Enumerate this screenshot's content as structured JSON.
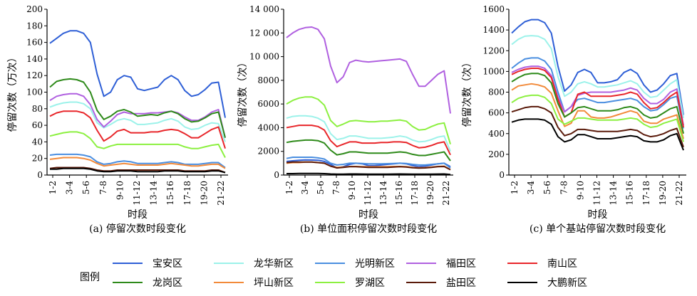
{
  "legend": {
    "title": "图例",
    "items": [
      {
        "name": "宝安区",
        "color": "#2e5fd6"
      },
      {
        "name": "龙华新区",
        "color": "#9cf2ea"
      },
      {
        "name": "光明新区",
        "color": "#4a8ee0"
      },
      {
        "name": "福田区",
        "color": "#b060e0"
      },
      {
        "name": "南山区",
        "color": "#e8262a"
      },
      {
        "name": "龙岗区",
        "color": "#2e8a1a"
      },
      {
        "name": "坪山新区",
        "color": "#f28a3a"
      },
      {
        "name": "罗湖区",
        "color": "#8cf040"
      },
      {
        "name": "盐田区",
        "color": "#5a1a0a"
      },
      {
        "name": "大鹏新区",
        "color": "#000000"
      }
    ]
  },
  "chart_data": [
    {
      "type": "line",
      "caption": "(a) 停留次数时段变化",
      "ylabel": "停留次数（万次）",
      "xlabel": "时段",
      "ylim": [
        0,
        200
      ],
      "yticks": [
        "0",
        "20",
        "40",
        "60",
        "80",
        "100",
        "120",
        "140",
        "160",
        "180",
        "200"
      ],
      "xticks": [
        "1-2",
        "3-4",
        "5-6",
        "7-8",
        "9-10",
        "11-12",
        "13-14",
        "15-16",
        "17-18",
        "19-20",
        "21-22"
      ],
      "series": [
        {
          "name": "宝安区",
          "values": [
            159,
            165,
            171,
            174,
            174,
            171,
            160,
            122,
            95,
            100,
            115,
            120,
            118,
            104,
            102,
            104,
            106,
            115,
            120,
            115,
            102,
            95,
            97,
            103,
            111,
            112,
            69
          ]
        },
        {
          "name": "龙华新区",
          "values": [
            82,
            85,
            87,
            88,
            88,
            86,
            80,
            63,
            57,
            61,
            66,
            68,
            66,
            61,
            61,
            62,
            63,
            66,
            68,
            65,
            58,
            55,
            56,
            60,
            63,
            62,
            40
          ]
        },
        {
          "name": "光明新区",
          "values": [
            24,
            25,
            25,
            25,
            25,
            24,
            22,
            16,
            13,
            14,
            16,
            17,
            16,
            14,
            14,
            14,
            14,
            15,
            16,
            15,
            13,
            13,
            13,
            14,
            15,
            15,
            9
          ]
        },
        {
          "name": "福田区",
          "values": [
            90,
            95,
            97,
            98,
            98,
            95,
            85,
            67,
            58,
            65,
            73,
            76,
            74,
            74,
            74,
            75,
            75,
            76,
            77,
            75,
            70,
            66,
            66,
            70,
            76,
            79,
            45
          ]
        },
        {
          "name": "南山区",
          "values": [
            71,
            75,
            77,
            77,
            77,
            75,
            69,
            54,
            41,
            46,
            53,
            55,
            51,
            51,
            51,
            52,
            52,
            54,
            55,
            54,
            50,
            45,
            45,
            50,
            55,
            58,
            32
          ]
        },
        {
          "name": "龙岗区",
          "values": [
            106,
            113,
            115,
            116,
            115,
            112,
            100,
            78,
            67,
            71,
            77,
            79,
            76,
            71,
            72,
            73,
            72,
            75,
            77,
            74,
            68,
            64,
            65,
            69,
            74,
            76,
            45
          ]
        },
        {
          "name": "坪山新区",
          "values": [
            19,
            20,
            21,
            21,
            21,
            20,
            18,
            14,
            11,
            12,
            13,
            14,
            13,
            12,
            12,
            12,
            12,
            13,
            14,
            13,
            12,
            11,
            11,
            12,
            13,
            13,
            8
          ]
        },
        {
          "name": "罗湖区",
          "values": [
            47,
            49,
            51,
            52,
            52,
            50,
            44,
            34,
            32,
            35,
            37,
            37,
            37,
            37,
            37,
            37,
            37,
            37,
            37,
            37,
            34,
            32,
            32,
            34,
            36,
            37,
            21
          ]
        },
        {
          "name": "盐田区",
          "values": [
            8,
            9,
            9,
            9,
            9,
            9,
            8,
            6,
            5,
            5,
            6,
            6,
            6,
            6,
            6,
            6,
            6,
            6,
            6,
            6,
            5,
            5,
            5,
            5,
            6,
            6,
            3
          ]
        },
        {
          "name": "大鹏新区",
          "values": [
            7,
            7,
            8,
            8,
            8,
            8,
            7,
            5,
            4,
            4,
            5,
            5,
            5,
            4,
            4,
            4,
            4,
            5,
            5,
            5,
            4,
            4,
            4,
            4,
            5,
            5,
            3
          ]
        }
      ]
    },
    {
      "type": "line",
      "caption": "(b) 单位面积停留次数时段变化",
      "ylabel": "停留次数（次）",
      "xlabel": "时段",
      "ylim": [
        0,
        14000
      ],
      "yticks": [
        "0",
        "2000",
        "4000",
        "6000",
        "8000",
        "10 000",
        "12 000",
        "14 000"
      ],
      "xticks": [
        "1-2",
        "3-4",
        "5-6",
        "7-8",
        "9-10",
        "11-12",
        "13-14",
        "15-16",
        "17-18",
        "19-20",
        "21-22"
      ],
      "series": [
        {
          "name": "宝安区",
          "values": [
            1150,
            1200,
            1250,
            1280,
            1270,
            1250,
            1150,
            900,
            600,
            700,
            900,
            1000,
            950,
            800,
            800,
            850,
            900,
            950,
            1000,
            950,
            800,
            700,
            750,
            850,
            950,
            1000,
            700
          ]
        },
        {
          "name": "龙华新区",
          "values": [
            4800,
            4950,
            5000,
            5000,
            4950,
            4800,
            4500,
            3500,
            3000,
            3100,
            3300,
            3300,
            3200,
            3100,
            3100,
            3100,
            3150,
            3200,
            3300,
            3200,
            2950,
            2800,
            2850,
            3000,
            3200,
            3300,
            2000
          ]
        },
        {
          "name": "光明新区",
          "values": [
            1400,
            1500,
            1500,
            1500,
            1500,
            1450,
            1350,
            1000,
            850,
            900,
            1000,
            1000,
            980,
            950,
            950,
            950,
            960,
            980,
            1000,
            980,
            900,
            850,
            850,
            900,
            950,
            1000,
            600
          ]
        },
        {
          "name": "福田区",
          "values": [
            11600,
            12000,
            12300,
            12450,
            12500,
            12300,
            11500,
            9200,
            7800,
            8300,
            9500,
            9700,
            9600,
            9550,
            9600,
            9650,
            9700,
            9750,
            9800,
            9600,
            8500,
            7500,
            7500,
            8000,
            8500,
            8800,
            5200
          ]
        },
        {
          "name": "南山区",
          "values": [
            4000,
            4100,
            4200,
            4200,
            4200,
            4100,
            3800,
            2900,
            2400,
            2600,
            2800,
            2800,
            2700,
            2700,
            2700,
            2750,
            2750,
            2800,
            2800,
            2750,
            2500,
            2300,
            2350,
            2500,
            2700,
            2800,
            1700
          ]
        },
        {
          "name": "龙岗区",
          "values": [
            2750,
            2850,
            2900,
            2950,
            2950,
            2900,
            2700,
            2100,
            1700,
            1800,
            1950,
            1950,
            1900,
            1850,
            1850,
            1850,
            1850,
            1900,
            1950,
            1900,
            1750,
            1650,
            1650,
            1750,
            1850,
            1950,
            1200
          ]
        },
        {
          "name": "坪山新区",
          "values": [
            1000,
            1050,
            1050,
            1100,
            1100,
            1050,
            1000,
            750,
            650,
            680,
            720,
            720,
            700,
            700,
            700,
            700,
            700,
            720,
            720,
            700,
            650,
            620,
            630,
            670,
            720,
            750,
            450
          ]
        },
        {
          "name": "罗湖区",
          "values": [
            6000,
            6300,
            6500,
            6600,
            6600,
            6400,
            5900,
            4600,
            4100,
            4300,
            4550,
            4600,
            4550,
            4500,
            4500,
            4550,
            4550,
            4600,
            4650,
            4550,
            4100,
            3800,
            3850,
            4100,
            4300,
            4400,
            2600
          ]
        },
        {
          "name": "盐田区",
          "values": [
            1050,
            1100,
            1100,
            1100,
            1100,
            1050,
            1000,
            750,
            600,
            650,
            700,
            700,
            680,
            650,
            650,
            650,
            650,
            680,
            700,
            680,
            620,
            580,
            600,
            640,
            700,
            720,
            450
          ]
        },
        {
          "name": "大鹏新区",
          "values": [
            120,
            120,
            130,
            130,
            130,
            130,
            120,
            90,
            70,
            80,
            90,
            90,
            85,
            80,
            80,
            80,
            80,
            85,
            90,
            85,
            75,
            70,
            70,
            75,
            85,
            90,
            50
          ]
        }
      ]
    },
    {
      "type": "line",
      "caption": "(c) 单个基站停留次数时段变化",
      "ylabel": "停留次数（次）",
      "xlabel": "时段",
      "ylim": [
        0,
        1600
      ],
      "yticks": [
        "0",
        "200",
        "400",
        "600",
        "800",
        "1000",
        "1200",
        "1400",
        "1600"
      ],
      "xticks": [
        "1-2",
        "3-4",
        "5-6",
        "7-8",
        "9-10",
        "11-12",
        "13-14",
        "15-16",
        "17-18",
        "19-20",
        "21-22"
      ],
      "series": [
        {
          "name": "宝安区",
          "values": [
            1370,
            1430,
            1480,
            1500,
            1500,
            1470,
            1370,
            1050,
            810,
            870,
            990,
            1020,
            990,
            890,
            890,
            900,
            920,
            990,
            1020,
            980,
            870,
            800,
            820,
            880,
            960,
            980,
            580
          ]
        },
        {
          "name": "龙华新区",
          "values": [
            1260,
            1310,
            1340,
            1345,
            1340,
            1310,
            1220,
            950,
            760,
            800,
            880,
            900,
            880,
            850,
            850,
            860,
            870,
            890,
            910,
            880,
            800,
            750,
            760,
            820,
            880,
            920,
            550
          ]
        },
        {
          "name": "光明新区",
          "values": [
            1030,
            1080,
            1120,
            1130,
            1130,
            1100,
            1020,
            800,
            610,
            660,
            730,
            740,
            720,
            700,
            700,
            710,
            720,
            730,
            740,
            720,
            660,
            620,
            630,
            680,
            740,
            760,
            450
          ]
        },
        {
          "name": "福田区",
          "values": [
            990,
            1020,
            1040,
            1050,
            1050,
            1030,
            960,
            750,
            610,
            660,
            770,
            790,
            800,
            800,
            800,
            800,
            810,
            820,
            840,
            820,
            740,
            690,
            690,
            730,
            800,
            830,
            480
          ]
        },
        {
          "name": "南山区",
          "values": [
            970,
            1000,
            1020,
            1030,
            1030,
            1010,
            940,
            730,
            560,
            600,
            780,
            800,
            760,
            760,
            760,
            760,
            770,
            780,
            800,
            780,
            700,
            640,
            650,
            700,
            760,
            800,
            460
          ]
        },
        {
          "name": "龙岗区",
          "values": [
            900,
            940,
            970,
            980,
            980,
            960,
            890,
            690,
            560,
            600,
            650,
            660,
            640,
            620,
            620,
            620,
            630,
            650,
            660,
            640,
            580,
            550,
            560,
            600,
            640,
            660,
            400
          ]
        },
        {
          "name": "坪山新区",
          "values": [
            820,
            860,
            870,
            880,
            870,
            850,
            790,
            620,
            470,
            500,
            620,
            620,
            560,
            550,
            550,
            560,
            580,
            600,
            620,
            600,
            520,
            500,
            500,
            540,
            560,
            580,
            350
          ]
        },
        {
          "name": "罗湖区",
          "values": [
            700,
            740,
            760,
            770,
            770,
            750,
            690,
            540,
            490,
            520,
            550,
            550,
            540,
            530,
            530,
            530,
            530,
            540,
            550,
            540,
            490,
            460,
            470,
            500,
            520,
            540,
            320
          ]
        },
        {
          "name": "盐田区",
          "values": [
            610,
            630,
            650,
            660,
            660,
            640,
            600,
            460,
            380,
            400,
            440,
            440,
            430,
            420,
            420,
            420,
            420,
            430,
            440,
            430,
            390,
            370,
            380,
            400,
            430,
            450,
            270
          ]
        },
        {
          "name": "大鹏新区",
          "values": [
            510,
            530,
            540,
            540,
            540,
            530,
            490,
            370,
            320,
            340,
            390,
            390,
            370,
            350,
            350,
            350,
            360,
            370,
            380,
            370,
            330,
            320,
            320,
            340,
            380,
            400,
            240
          ]
        }
      ]
    }
  ]
}
